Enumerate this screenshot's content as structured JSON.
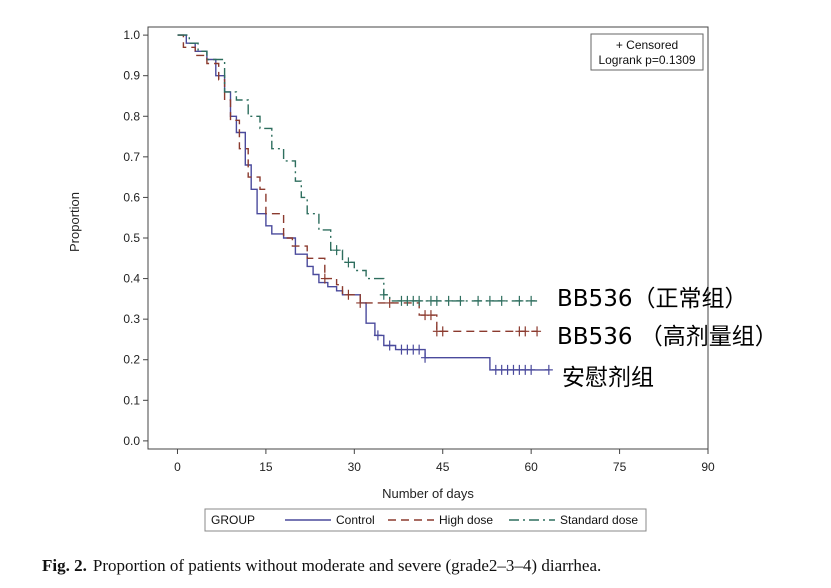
{
  "chart_data": {
    "type": "line",
    "subtype": "kaplan-meier step",
    "xlabel": "Number of days",
    "ylabel": "Proportion",
    "xlim": [
      -5,
      90
    ],
    "ylim": [
      -0.02,
      1.02
    ],
    "xticks": [
      "0",
      "15",
      "30",
      "45",
      "60",
      "75",
      "90"
    ],
    "yticks": [
      "0.0",
      "0.1",
      "0.2",
      "0.3",
      "0.4",
      "0.5",
      "0.6",
      "0.7",
      "0.8",
      "0.9",
      "1.0"
    ],
    "info_box": {
      "line1": "+ Censored",
      "line2": "Logrank p=0.1309"
    },
    "legend": {
      "title": "GROUP",
      "placement": "bottom"
    },
    "series": [
      {
        "name": "Control",
        "color": "#4a4a9c",
        "dash": "solid",
        "annotation": "安慰剂组",
        "points": [
          [
            0,
            1.0
          ],
          [
            1.5,
            1.0
          ],
          [
            1.5,
            0.98
          ],
          [
            3,
            0.98
          ],
          [
            3,
            0.96
          ],
          [
            5,
            0.96
          ],
          [
            5,
            0.94
          ],
          [
            6.5,
            0.94
          ],
          [
            6.5,
            0.9
          ],
          [
            8,
            0.9
          ],
          [
            8,
            0.86
          ],
          [
            9,
            0.86
          ],
          [
            9,
            0.8
          ],
          [
            10,
            0.8
          ],
          [
            10,
            0.76
          ],
          [
            11.5,
            0.76
          ],
          [
            11.5,
            0.68
          ],
          [
            12.5,
            0.68
          ],
          [
            12.5,
            0.62
          ],
          [
            13.5,
            0.62
          ],
          [
            13.5,
            0.56
          ],
          [
            15,
            0.56
          ],
          [
            15,
            0.53
          ],
          [
            16,
            0.53
          ],
          [
            16,
            0.51
          ],
          [
            18,
            0.51
          ],
          [
            18,
            0.5
          ],
          [
            20,
            0.5
          ],
          [
            20,
            0.46
          ],
          [
            22,
            0.46
          ],
          [
            22,
            0.43
          ],
          [
            23,
            0.43
          ],
          [
            23,
            0.41
          ],
          [
            24,
            0.41
          ],
          [
            24,
            0.39
          ],
          [
            25.5,
            0.39
          ],
          [
            25.5,
            0.38
          ],
          [
            27,
            0.38
          ],
          [
            27,
            0.37
          ],
          [
            28,
            0.37
          ],
          [
            28,
            0.36
          ],
          [
            31,
            0.36
          ],
          [
            31,
            0.34
          ],
          [
            32,
            0.34
          ],
          [
            32,
            0.29
          ],
          [
            33.5,
            0.29
          ],
          [
            33.5,
            0.26
          ],
          [
            35,
            0.26
          ],
          [
            35,
            0.235
          ],
          [
            37,
            0.235
          ],
          [
            37,
            0.225
          ],
          [
            42,
            0.225
          ],
          [
            42,
            0.205
          ],
          [
            53,
            0.205
          ],
          [
            53,
            0.175
          ],
          [
            63,
            0.175
          ]
        ],
        "censored_x": [
          34,
          36,
          38,
          39,
          40,
          41,
          42,
          54,
          55,
          56,
          57,
          58,
          59,
          60,
          63
        ]
      },
      {
        "name": "High dose",
        "color": "#8b3a2e",
        "dash": "8,5",
        "annotation": "BB536 （高剂量组）",
        "points": [
          [
            0,
            1.0
          ],
          [
            1,
            1.0
          ],
          [
            1,
            0.97
          ],
          [
            3,
            0.97
          ],
          [
            3,
            0.95
          ],
          [
            5,
            0.95
          ],
          [
            5,
            0.93
          ],
          [
            7,
            0.93
          ],
          [
            7,
            0.89
          ],
          [
            8,
            0.89
          ],
          [
            8,
            0.84
          ],
          [
            9,
            0.84
          ],
          [
            9,
            0.79
          ],
          [
            10.5,
            0.79
          ],
          [
            10.5,
            0.72
          ],
          [
            12,
            0.72
          ],
          [
            12,
            0.65
          ],
          [
            14,
            0.65
          ],
          [
            14,
            0.62
          ],
          [
            15,
            0.62
          ],
          [
            15,
            0.56
          ],
          [
            18,
            0.56
          ],
          [
            18,
            0.5
          ],
          [
            19.5,
            0.5
          ],
          [
            19.5,
            0.48
          ],
          [
            22,
            0.48
          ],
          [
            22,
            0.45
          ],
          [
            25,
            0.45
          ],
          [
            25,
            0.4
          ],
          [
            27,
            0.4
          ],
          [
            27,
            0.385
          ],
          [
            28,
            0.385
          ],
          [
            28,
            0.36
          ],
          [
            31,
            0.36
          ],
          [
            31,
            0.34
          ],
          [
            41,
            0.34
          ],
          [
            41,
            0.31
          ],
          [
            44,
            0.31
          ],
          [
            44,
            0.27
          ],
          [
            61,
            0.27
          ]
        ],
        "censored_x": [
          25,
          29,
          31,
          36,
          42,
          43,
          44,
          45,
          58,
          59,
          61
        ]
      },
      {
        "name": "Standard dose",
        "color": "#2e6e5e",
        "dash": "10,4,2,4",
        "annotation": "BB536（正常组）",
        "points": [
          [
            0,
            1.0
          ],
          [
            2,
            1.0
          ],
          [
            2,
            0.98
          ],
          [
            3.5,
            0.98
          ],
          [
            3.5,
            0.96
          ],
          [
            5,
            0.96
          ],
          [
            5,
            0.94
          ],
          [
            8,
            0.94
          ],
          [
            8,
            0.86
          ],
          [
            10,
            0.86
          ],
          [
            10,
            0.84
          ],
          [
            12,
            0.84
          ],
          [
            12,
            0.8
          ],
          [
            14,
            0.8
          ],
          [
            14,
            0.77
          ],
          [
            16,
            0.77
          ],
          [
            16,
            0.72
          ],
          [
            18,
            0.72
          ],
          [
            18,
            0.69
          ],
          [
            20,
            0.69
          ],
          [
            20,
            0.64
          ],
          [
            21,
            0.64
          ],
          [
            21,
            0.6
          ],
          [
            22,
            0.6
          ],
          [
            22,
            0.56
          ],
          [
            24,
            0.56
          ],
          [
            24,
            0.52
          ],
          [
            26,
            0.52
          ],
          [
            26,
            0.47
          ],
          [
            28,
            0.47
          ],
          [
            28,
            0.44
          ],
          [
            30,
            0.44
          ],
          [
            30,
            0.42
          ],
          [
            32,
            0.42
          ],
          [
            32,
            0.4
          ],
          [
            35,
            0.4
          ],
          [
            35,
            0.36
          ],
          [
            36,
            0.36
          ],
          [
            36,
            0.345
          ],
          [
            61,
            0.345
          ]
        ],
        "censored_x": [
          27,
          29,
          35,
          38,
          39,
          40,
          41,
          43,
          44,
          46,
          48,
          51,
          53,
          55,
          58,
          60
        ]
      }
    ]
  },
  "caption": {
    "label": "Fig. 2.",
    "text": "Proportion of patients without moderate and severe (grade2–3–4) diarrhea."
  }
}
